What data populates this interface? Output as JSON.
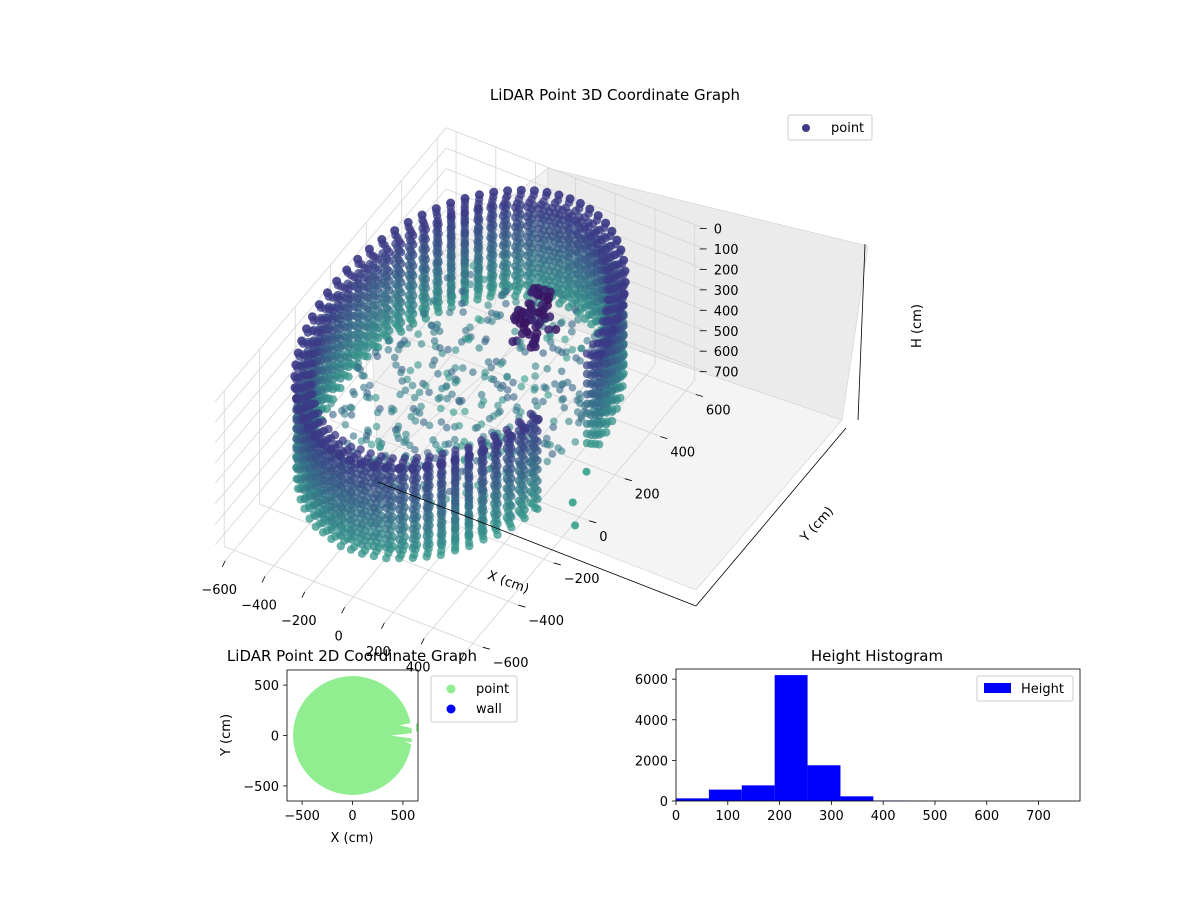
{
  "chart_data": [
    {
      "type": "scatter",
      "projection": "3d",
      "title": "LiDAR Point 3D Coordinate Graph",
      "xlabel": "X (cm)",
      "ylabel": "Y (cm)",
      "zlabel": "H (cm)",
      "xticks": [
        "−600",
        "−400",
        "−200",
        "0",
        "200",
        "400",
        "600"
      ],
      "yticks": [
        "−600",
        "−400",
        "−200",
        "0",
        "200",
        "400",
        "600"
      ],
      "zticks": [
        "0",
        "100",
        "200",
        "300",
        "400",
        "500",
        "600",
        "700"
      ],
      "xlim": [
        -650,
        650
      ],
      "ylim": [
        -650,
        650
      ],
      "zlim": [
        0,
        760
      ],
      "z_inverted": true,
      "legend": {
        "entries": [
          "point"
        ],
        "position": "top-right"
      },
      "colors": {
        "low": "#3b3a86",
        "high": "#34a18c",
        "legend": "#3f3b88"
      }
    },
    {
      "type": "scatter",
      "title": "LiDAR Point 2D Coordinate Graph",
      "xlabel": "X (cm)",
      "ylabel": "Y (cm)",
      "xticks": [
        "−500",
        "0",
        "500"
      ],
      "yticks": [
        "500",
        "0",
        "−500"
      ],
      "xlim": [
        -650,
        650
      ],
      "ylim": [
        -650,
        650
      ],
      "series": [
        {
          "name": "point",
          "color": "#90ee90"
        },
        {
          "name": "wall",
          "color": "#0000ff"
        }
      ],
      "legend": {
        "position": "outside-right"
      }
    },
    {
      "type": "bar",
      "subtype": "histogram",
      "title": "Height Histogram",
      "xticks": [
        "0",
        "100",
        "200",
        "300",
        "400",
        "500",
        "600",
        "700"
      ],
      "yticks": [
        "0",
        "2000",
        "4000",
        "6000"
      ],
      "xlim": [
        0,
        780
      ],
      "ylim": [
        0,
        6500
      ],
      "bin_width": 63.5,
      "bins": [
        {
          "start": 0,
          "count": 130
        },
        {
          "start": 63.5,
          "count": 560
        },
        {
          "start": 127,
          "count": 770
        },
        {
          "start": 190.5,
          "count": 6200
        },
        {
          "start": 254,
          "count": 1760
        },
        {
          "start": 317.5,
          "count": 230
        },
        {
          "start": 381,
          "count": 20
        },
        {
          "start": 444.5,
          "count": 10
        },
        {
          "start": 508,
          "count": 8
        },
        {
          "start": 571.5,
          "count": 6
        },
        {
          "start": 635,
          "count": 5
        },
        {
          "start": 698.5,
          "count": 4
        }
      ],
      "series": [
        {
          "name": "Height",
          "color": "#0000ff"
        }
      ],
      "legend": {
        "position": "top-right"
      }
    }
  ]
}
